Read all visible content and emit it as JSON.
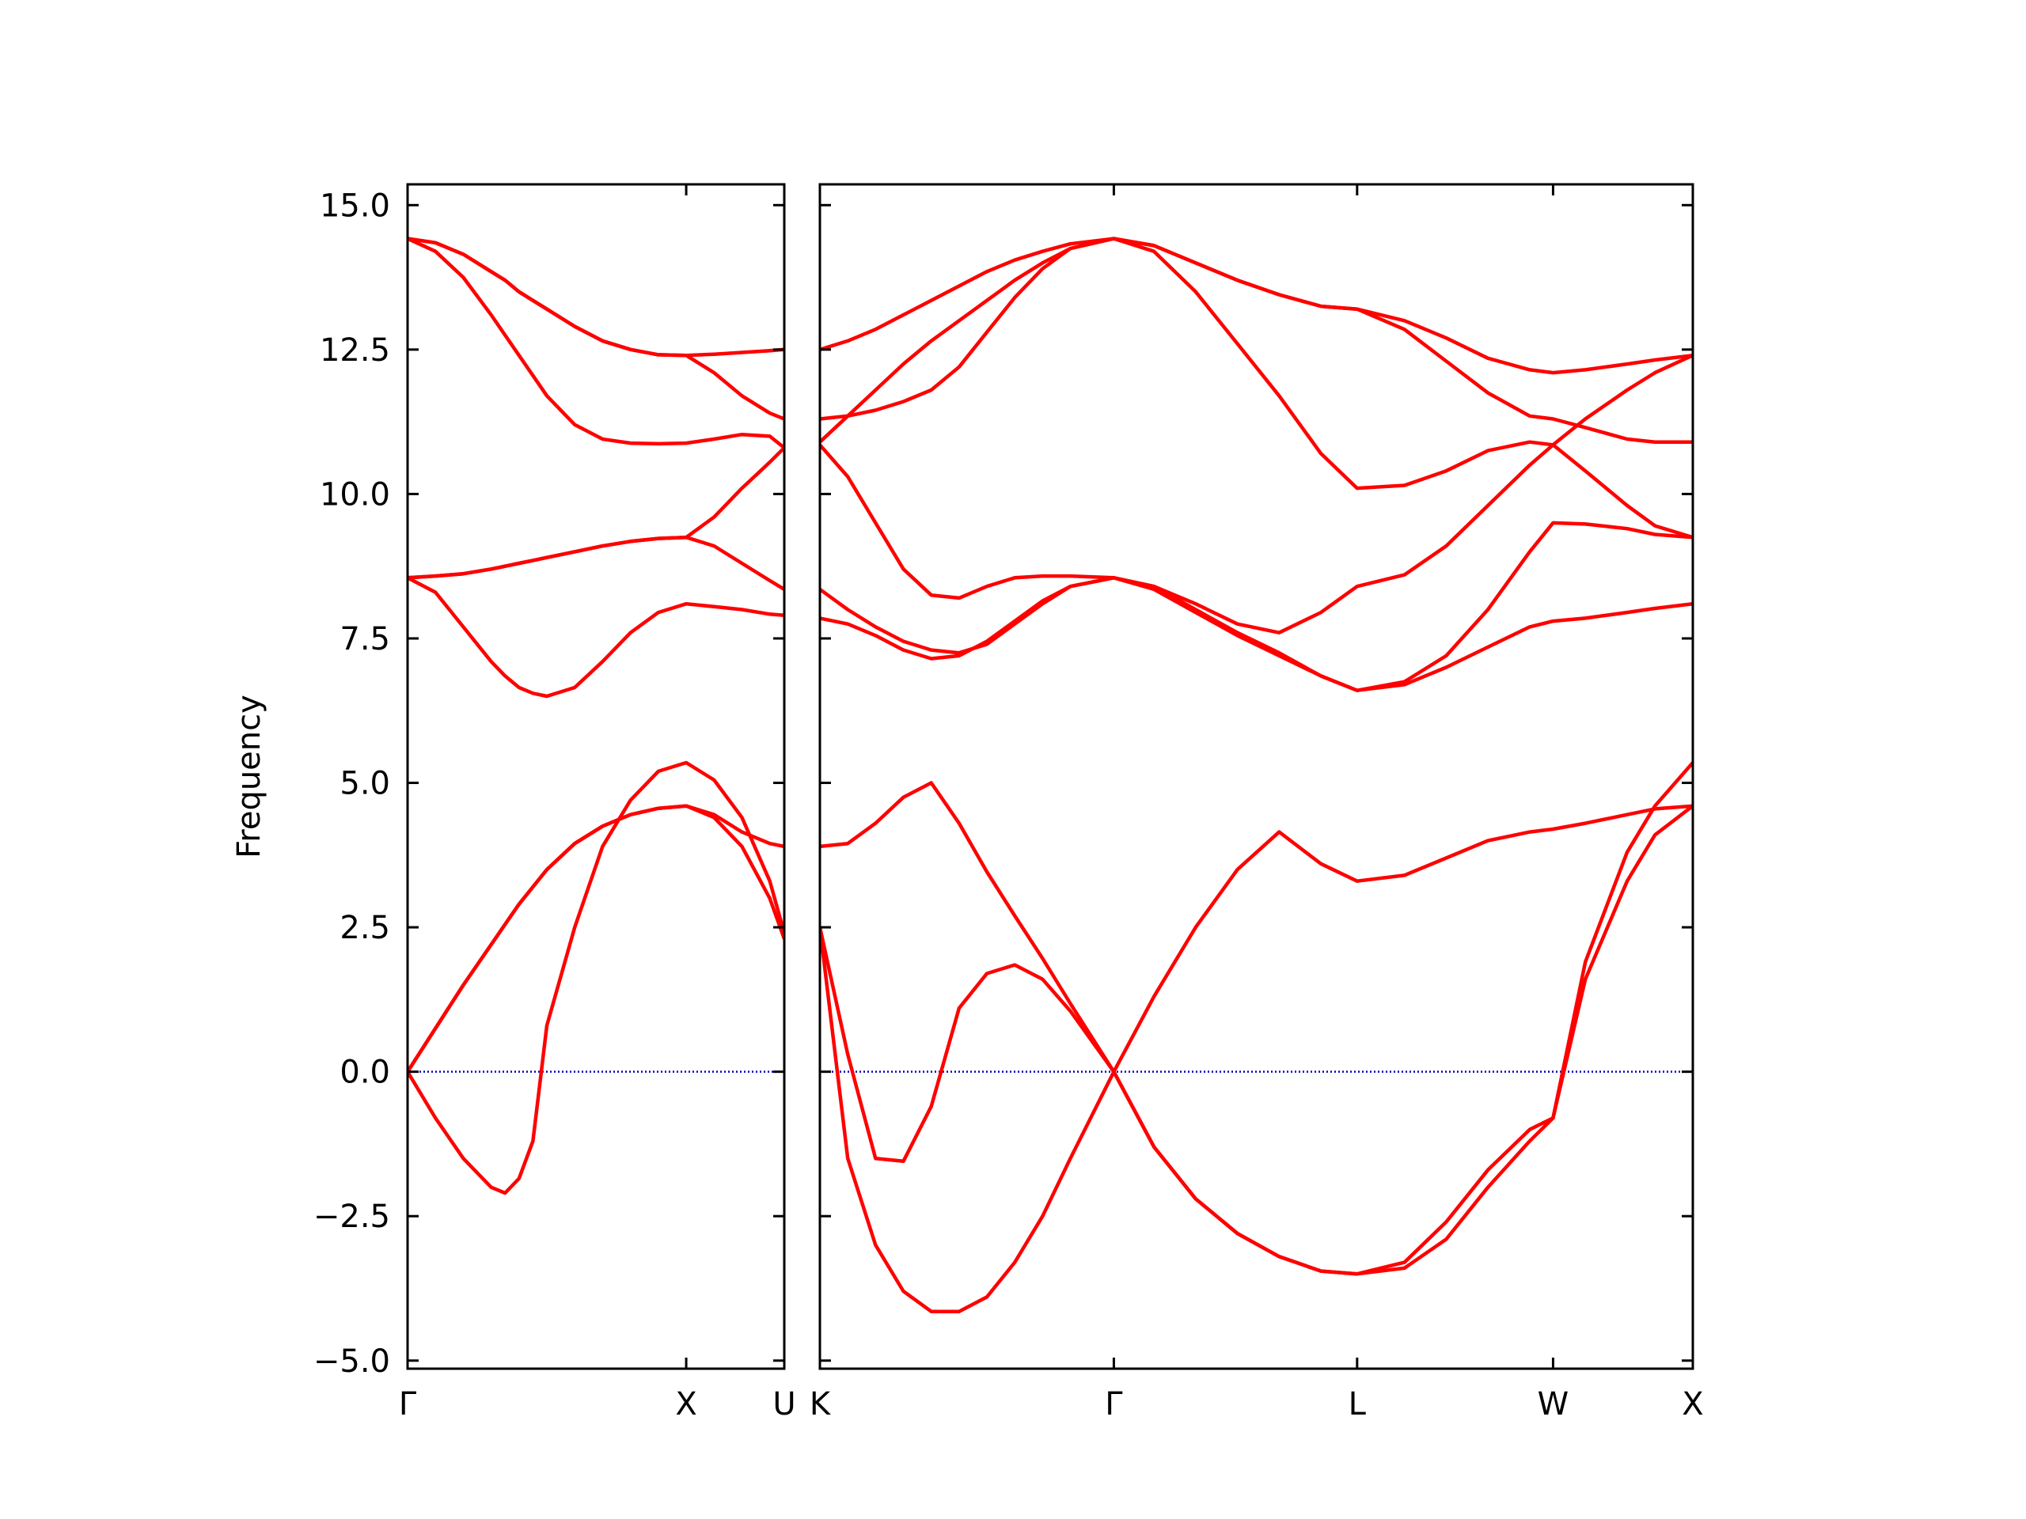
{
  "chart_data": [
    {
      "type": "line",
      "ylabel": "Frequency",
      "color": "#ff0000",
      "hline": 0,
      "hline_color": "#0000cc",
      "xlim": [
        0,
        1.352
      ],
      "ylim": [
        -5.14,
        15.36
      ],
      "xticks": [
        {
          "value": 0,
          "label": "Γ"
        },
        {
          "value": 1,
          "label": "X"
        },
        {
          "value": 1.352,
          "label": "U"
        }
      ],
      "yticks": [
        {
          "value": -5,
          "label": "−5.0"
        },
        {
          "value": -2.5,
          "label": "−2.5"
        },
        {
          "value": 0,
          "label": "0.0"
        },
        {
          "value": 2.5,
          "label": "2.5"
        },
        {
          "value": 5,
          "label": "5.0"
        },
        {
          "value": 7.5,
          "label": "7.5"
        },
        {
          "value": 10,
          "label": "10.0"
        },
        {
          "value": 12.5,
          "label": "12.5"
        },
        {
          "value": 15,
          "label": "15.0"
        }
      ],
      "x": [
        0,
        0.1,
        0.2,
        0.3,
        0.35,
        0.4,
        0.45,
        0.5,
        0.6,
        0.7,
        0.8,
        0.9,
        1.0,
        1.1,
        1.2,
        1.3,
        1.352
      ],
      "series": [
        {
          "values": [
            0,
            -0.8,
            -1.5,
            -2.0,
            -2.1,
            -1.85,
            -1.2,
            0.8,
            2.5,
            3.9,
            4.7,
            5.2,
            5.35,
            5.05,
            4.4,
            3.3,
            2.4
          ]
        },
        {
          "values": [
            0,
            0.75,
            1.5,
            2.2,
            2.55,
            2.9,
            3.2,
            3.5,
            3.95,
            4.25,
            4.45,
            4.56,
            4.6,
            4.45,
            4.15,
            3.95,
            3.9
          ]
        },
        {
          "values": [
            0,
            0.75,
            1.5,
            2.2,
            2.55,
            2.9,
            3.2,
            3.5,
            3.95,
            4.25,
            4.45,
            4.56,
            4.6,
            4.4,
            3.9,
            3.0,
            2.3
          ]
        },
        {
          "values": [
            8.55,
            8.3,
            7.7,
            7.1,
            6.85,
            6.65,
            6.55,
            6.5,
            6.65,
            7.1,
            7.6,
            7.95,
            8.1,
            8.05,
            8.0,
            7.92,
            7.9
          ]
        },
        {
          "values": [
            8.55,
            8.58,
            8.62,
            8.7,
            8.75,
            8.8,
            8.85,
            8.9,
            9.0,
            9.1,
            9.18,
            9.23,
            9.25,
            9.1,
            8.8,
            8.5,
            8.35
          ]
        },
        {
          "values": [
            8.55,
            8.58,
            8.62,
            8.7,
            8.75,
            8.8,
            8.85,
            8.9,
            9.0,
            9.1,
            9.18,
            9.23,
            9.25,
            9.6,
            10.1,
            10.55,
            10.8
          ]
        },
        {
          "values": [
            14.42,
            14.2,
            13.75,
            13.1,
            12.75,
            12.4,
            12.05,
            11.7,
            11.2,
            10.95,
            10.88,
            10.87,
            10.88,
            10.95,
            11.03,
            11.0,
            10.8
          ]
        },
        {
          "values": [
            14.42,
            14.35,
            14.15,
            13.85,
            13.7,
            13.5,
            13.35,
            13.2,
            12.9,
            12.65,
            12.5,
            12.41,
            12.4,
            12.42,
            12.45,
            12.48,
            12.5
          ]
        },
        {
          "values": [
            14.42,
            14.35,
            14.15,
            13.85,
            13.7,
            13.5,
            13.35,
            13.2,
            12.9,
            12.65,
            12.5,
            12.41,
            12.4,
            12.1,
            11.7,
            11.4,
            11.3
          ]
        }
      ]
    },
    {
      "type": "line",
      "color": "#ff0000",
      "hline": 0,
      "hline_color": "#0000cc",
      "xlim": [
        0,
        3.136
      ],
      "ylim": [
        -5.14,
        15.36
      ],
      "ytick_labels": false,
      "xticks": [
        {
          "value": 0,
          "label": "K"
        },
        {
          "value": 1.056,
          "label": "Γ"
        },
        {
          "value": 1.93,
          "label": "L"
        },
        {
          "value": 2.634,
          "label": "W"
        },
        {
          "value": 3.136,
          "label": "X"
        }
      ],
      "yticks": [
        -5,
        -2.5,
        0,
        2.5,
        5,
        7.5,
        10,
        12.5,
        15
      ],
      "x": [
        0,
        0.1,
        0.2,
        0.3,
        0.4,
        0.5,
        0.6,
        0.7,
        0.8,
        0.9,
        1.056,
        1.2,
        1.35,
        1.5,
        1.65,
        1.8,
        1.93,
        2.1,
        2.25,
        2.4,
        2.55,
        2.634,
        2.75,
        2.9,
        3.0,
        3.136
      ],
      "series": [
        {
          "values": [
            2.5,
            -1.5,
            -3.0,
            -3.8,
            -4.15,
            -4.15,
            -3.9,
            -3.3,
            -2.5,
            -1.5,
            0,
            -1.3,
            -2.2,
            -2.8,
            -3.2,
            -3.45,
            -3.5,
            -3.3,
            -2.6,
            -1.7,
            -1.0,
            -0.8,
            1.9,
            3.8,
            4.6,
            5.35
          ]
        },
        {
          "values": [
            2.5,
            0.3,
            -1.5,
            -1.55,
            -0.6,
            1.1,
            1.7,
            1.85,
            1.6,
            1.05,
            0,
            -1.3,
            -2.2,
            -2.8,
            -3.2,
            -3.45,
            -3.5,
            -3.4,
            -2.9,
            -2.0,
            -1.2,
            -0.8,
            1.6,
            3.3,
            4.1,
            4.6
          ]
        },
        {
          "values": [
            3.9,
            3.95,
            4.3,
            4.75,
            5.0,
            4.3,
            3.46,
            2.7,
            1.96,
            1.18,
            0,
            1.3,
            2.5,
            3.5,
            4.15,
            3.6,
            3.3,
            3.4,
            3.7,
            4.0,
            4.15,
            4.2,
            4.3,
            4.45,
            4.55,
            4.6
          ]
        },
        {
          "values": [
            12.5,
            12.65,
            12.85,
            13.1,
            13.35,
            13.6,
            13.85,
            14.05,
            14.2,
            14.33,
            14.42,
            14.3,
            14.0,
            13.7,
            13.45,
            13.25,
            13.2,
            13.0,
            12.7,
            12.35,
            12.15,
            12.1,
            12.15,
            12.25,
            12.32,
            12.4
          ]
        },
        {
          "values": [
            11.3,
            11.35,
            11.45,
            11.6,
            11.8,
            12.2,
            12.8,
            13.4,
            13.9,
            14.25,
            14.42,
            14.3,
            14.0,
            13.7,
            13.45,
            13.25,
            13.2,
            12.85,
            12.3,
            11.75,
            11.35,
            11.3,
            11.15,
            10.95,
            10.9,
            10.9
          ]
        },
        {
          "values": [
            10.9,
            11.35,
            11.8,
            12.25,
            12.65,
            13.0,
            13.35,
            13.7,
            14.0,
            14.25,
            14.42,
            14.2,
            13.5,
            12.6,
            11.7,
            10.7,
            10.1,
            10.15,
            10.4,
            10.75,
            10.9,
            10.85,
            10.4,
            9.8,
            9.45,
            9.25
          ]
        },
        {
          "values": [
            10.85,
            10.3,
            9.5,
            8.7,
            8.25,
            8.2,
            8.4,
            8.55,
            8.58,
            8.58,
            8.55,
            8.4,
            8.1,
            7.75,
            7.6,
            7.95,
            8.4,
            8.6,
            9.1,
            9.8,
            10.5,
            10.85,
            11.3,
            11.8,
            12.1,
            12.4
          ]
        },
        {
          "values": [
            8.35,
            8.0,
            7.7,
            7.45,
            7.3,
            7.25,
            7.4,
            7.75,
            8.1,
            8.4,
            8.55,
            8.4,
            8.0,
            7.6,
            7.25,
            6.85,
            6.6,
            6.75,
            7.2,
            8.0,
            9.0,
            9.5,
            9.48,
            9.4,
            9.3,
            9.25
          ]
        },
        {
          "values": [
            7.85,
            7.75,
            7.55,
            7.3,
            7.15,
            7.2,
            7.45,
            7.8,
            8.15,
            8.4,
            8.55,
            8.35,
            7.95,
            7.55,
            7.2,
            6.85,
            6.6,
            6.7,
            7.0,
            7.35,
            7.7,
            7.8,
            7.85,
            7.95,
            8.02,
            8.1
          ]
        }
      ]
    }
  ]
}
